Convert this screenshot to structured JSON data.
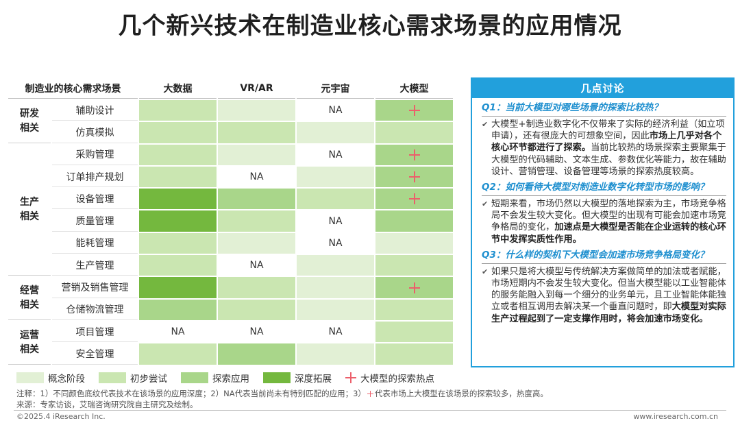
{
  "title": "几个新兴技术在制造业核心需求场景的应用情况",
  "table": {
    "header": {
      "scene": "制造业的核心需求场景",
      "techs": [
        "大数据",
        "VR/AR",
        "元宇宙",
        "大模型"
      ]
    },
    "groups": [
      {
        "label": "研发\n相关",
        "rows": [
          {
            "scene": "辅助设计",
            "cells": [
              {
                "level": 2
              },
              {
                "level": 1
              },
              {
                "level": 0,
                "text": "NA"
              },
              {
                "level": 3,
                "hot": true
              }
            ]
          },
          {
            "scene": "仿真模拟",
            "cells": [
              {
                "level": 2
              },
              {
                "level": 2
              },
              {
                "level": 1
              },
              {
                "level": 2
              }
            ]
          }
        ]
      },
      {
        "label": "生产\n相关",
        "rows": [
          {
            "scene": "采购管理",
            "cells": [
              {
                "level": 2
              },
              {
                "level": 1
              },
              {
                "level": 0,
                "text": "NA"
              },
              {
                "level": 3,
                "hot": true
              }
            ]
          },
          {
            "scene": "订单排产规划",
            "cells": [
              {
                "level": 2
              },
              {
                "level": 0,
                "text": "NA"
              },
              {
                "level": 1
              },
              {
                "level": 3,
                "hot": true
              }
            ]
          },
          {
            "scene": "设备管理",
            "cells": [
              {
                "level": 4
              },
              {
                "level": 3
              },
              {
                "level": 2
              },
              {
                "level": 3,
                "hot": true
              }
            ]
          },
          {
            "scene": "质量管理",
            "cells": [
              {
                "level": 4
              },
              {
                "level": 2
              },
              {
                "level": 0,
                "text": "NA"
              },
              {
                "level": 3
              }
            ]
          },
          {
            "scene": "能耗管理",
            "cells": [
              {
                "level": 2
              },
              {
                "level": 1
              },
              {
                "level": 0,
                "text": "NA"
              },
              {
                "level": 1
              }
            ]
          },
          {
            "scene": "生产管理",
            "cells": [
              {
                "level": 2
              },
              {
                "level": 0,
                "text": "NA"
              },
              {
                "level": 1
              },
              {
                "level": 2
              }
            ]
          }
        ]
      },
      {
        "label": "经营\n相关",
        "rows": [
          {
            "scene": "营销及销售管理",
            "cells": [
              {
                "level": 4
              },
              {
                "level": 2
              },
              {
                "level": 1
              },
              {
                "level": 3,
                "hot": true
              }
            ]
          },
          {
            "scene": "仓储物流管理",
            "cells": [
              {
                "level": 3
              },
              {
                "level": 2
              },
              {
                "level": 1
              },
              {
                "level": 2
              }
            ]
          }
        ]
      },
      {
        "label": "运营\n相关",
        "rows": [
          {
            "scene": "项目管理",
            "cells": [
              {
                "level": 0,
                "text": "NA"
              },
              {
                "level": 0,
                "text": "NA"
              },
              {
                "level": 0,
                "text": "NA"
              },
              {
                "level": 2
              }
            ]
          },
          {
            "scene": "安全管理",
            "cells": [
              {
                "level": 2
              },
              {
                "level": 3
              },
              {
                "level": 1
              },
              {
                "level": 2
              }
            ]
          }
        ]
      }
    ]
  },
  "legend": {
    "items": [
      {
        "label": "概念阶段",
        "color": "#e2f0d5"
      },
      {
        "label": "初步尝试",
        "color": "#cae6b1"
      },
      {
        "label": "探索应用",
        "color": "#a9d68a"
      },
      {
        "label": "深度拓展",
        "color": "#74b83e"
      }
    ],
    "hot_label": "大模型的探索热点"
  },
  "panel": {
    "title": "几点讨论",
    "q1": "Q1：当前大模型对哪些场景的探索比较热？",
    "a1_1": "大模型+制造业数字化不仅带来了实际的经济利益（如立项申请），还有很庞大的可想象空间，因此",
    "a1_bold": "市场上几乎对各个核心环节都进行了探索。",
    "a1_2": "当前比较热的场景探索主要聚集于大模型的代码辅助、文本生成、参数优化等能力，故在辅助设计、营销管理、设备管理等场景的探索热度较高。",
    "q2": "Q2：如何看待大模型对制造业数字化转型市场的影响？",
    "a2_1": "短期来看，市场仍然以大模型的落地探索为主，市场竞争格局不会发生较大变化。但大模型的出现有可能会加速市场竞争格局的变化，",
    "a2_bold": "加速点是大模型是否能在企业运转的核心环节中发挥实质性作用。",
    "q3": "Q3：什么样的契机下大模型会加速市场竞争格局变化？",
    "a3_1": "如果只是将大模型与传统解决方案做简单的加法或者赋能，市场短期内不会发生较大变化。但当大模型能以工业智能体的服务能融入到每一个细分的业务单元，且工业智能体能独立或者相互调用去解决某一个垂直问题时，即",
    "a3_bold": "大模型对实际生产过程起到了一定支撑作用时，将会加速市场变化。"
  },
  "notes": {
    "note_a": "注释：1）不同颜色底纹代表技术在该场景的应用深度；2）NA代表当前尚未有特别匹配的应用；3）",
    "note_b": "代表市场上大模型在该场景的探索较多，热度高。",
    "source": "来源：专家访谈，艾瑞咨询研究院自主研究及绘制。"
  },
  "footer": {
    "left": "©2025.4 iResearch Inc.",
    "right": "www.iresearch.com.cn"
  }
}
